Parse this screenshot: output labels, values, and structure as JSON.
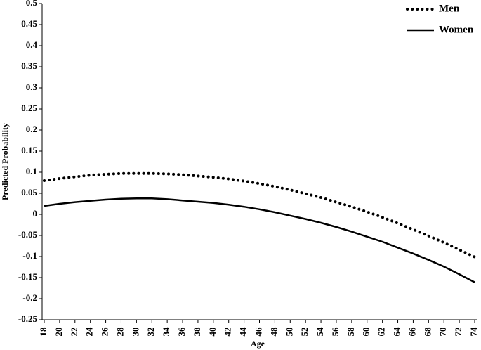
{
  "chart_data": {
    "type": "line",
    "x_label": "Age",
    "y_label": "Predicted Probability",
    "x": [
      18,
      20,
      22,
      24,
      26,
      28,
      30,
      32,
      34,
      36,
      38,
      40,
      42,
      44,
      46,
      48,
      50,
      52,
      54,
      56,
      58,
      60,
      62,
      64,
      66,
      68,
      70,
      72,
      74
    ],
    "xlim": [
      18,
      74
    ],
    "xticks": [
      18,
      20,
      22,
      24,
      26,
      28,
      30,
      32,
      34,
      36,
      38,
      40,
      42,
      44,
      46,
      48,
      50,
      52,
      54,
      56,
      58,
      60,
      62,
      64,
      66,
      68,
      70,
      72,
      74
    ],
    "ylim": [
      -0.25,
      0.5
    ],
    "yticks": [
      0.5,
      0.45,
      0.4,
      0.35,
      0.3,
      0.25,
      0.2,
      0.15,
      0.1,
      0.05,
      0,
      -0.05,
      -0.1,
      -0.15,
      -0.2,
      -0.25
    ],
    "grid": false,
    "legend": "top-right",
    "series": [
      {
        "name": "Men",
        "color": "#000000",
        "style": "dotted",
        "values": [
          0.08,
          0.085,
          0.089,
          0.093,
          0.095,
          0.097,
          0.097,
          0.097,
          0.096,
          0.094,
          0.091,
          0.088,
          0.084,
          0.079,
          0.073,
          0.066,
          0.058,
          0.049,
          0.04,
          0.029,
          0.018,
          0.006,
          -0.007,
          -0.021,
          -0.036,
          -0.051,
          -0.067,
          -0.084,
          -0.101
        ]
      },
      {
        "name": "Women",
        "color": "#000000",
        "style": "solid",
        "values": [
          0.02,
          0.025,
          0.029,
          0.032,
          0.035,
          0.037,
          0.038,
          0.038,
          0.036,
          0.033,
          0.03,
          0.027,
          0.023,
          0.018,
          0.012,
          0.005,
          -0.003,
          -0.011,
          -0.02,
          -0.03,
          -0.041,
          -0.053,
          -0.065,
          -0.079,
          -0.093,
          -0.108,
          -0.124,
          -0.142,
          -0.161
        ]
      }
    ]
  }
}
